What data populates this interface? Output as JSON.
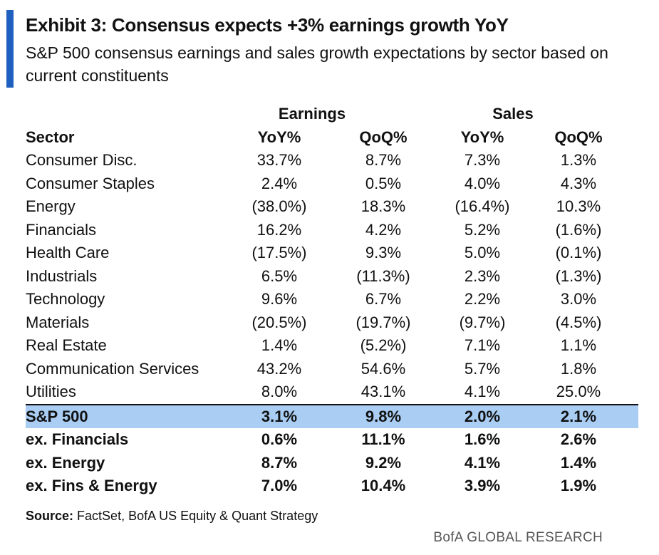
{
  "exhibit": {
    "title": "Exhibit 3: Consensus expects +3% earnings growth YoY",
    "subtitle": "S&P 500 consensus earnings and sales growth expectations by sector based on current constituents"
  },
  "table": {
    "group_headers": {
      "earnings": "Earnings",
      "sales": "Sales"
    },
    "columns": [
      "Sector",
      "YoY%",
      "QoQ%",
      "YoY%",
      "QoQ%"
    ],
    "rows": [
      [
        "Consumer Disc.",
        "33.7%",
        "8.7%",
        "7.3%",
        "1.3%"
      ],
      [
        "Consumer Staples",
        "2.4%",
        "0.5%",
        "4.0%",
        "4.3%"
      ],
      [
        "Energy",
        "(38.0%)",
        "18.3%",
        "(16.4%)",
        "10.3%"
      ],
      [
        "Financials",
        "16.2%",
        "4.2%",
        "5.2%",
        "(1.6%)"
      ],
      [
        "Health Care",
        "(17.5%)",
        "9.3%",
        "5.0%",
        "(0.1%)"
      ],
      [
        "Industrials",
        "6.5%",
        "(11.3%)",
        "2.3%",
        "(1.3%)"
      ],
      [
        "Technology",
        "9.6%",
        "6.7%",
        "2.2%",
        "3.0%"
      ],
      [
        "Materials",
        "(20.5%)",
        "(19.7%)",
        "(9.7%)",
        "(4.5%)"
      ],
      [
        "Real Estate",
        "1.4%",
        "(5.2%)",
        "7.1%",
        "1.1%"
      ],
      [
        "Communication Services",
        "43.2%",
        "54.6%",
        "5.7%",
        "1.8%"
      ],
      [
        "Utilities",
        "8.0%",
        "43.1%",
        "4.1%",
        "25.0%"
      ]
    ],
    "summary_rows": [
      [
        "S&P 500",
        "3.1%",
        "9.8%",
        "2.0%",
        "2.1%"
      ],
      [
        "ex. Financials",
        "0.6%",
        "11.1%",
        "1.6%",
        "2.6%"
      ],
      [
        "ex. Energy",
        "8.7%",
        "9.2%",
        "4.1%",
        "1.4%"
      ],
      [
        "ex. Fins & Energy",
        "7.0%",
        "10.4%",
        "3.9%",
        "1.9%"
      ]
    ]
  },
  "footer": {
    "source_label": "Source:",
    "source_text": "FactSet, BofA US Equity & Quant Strategy",
    "brand": "BofA GLOBAL RESEARCH"
  },
  "colors": {
    "accent": "#1f5fbf",
    "highlight": "#a9cdf3"
  }
}
